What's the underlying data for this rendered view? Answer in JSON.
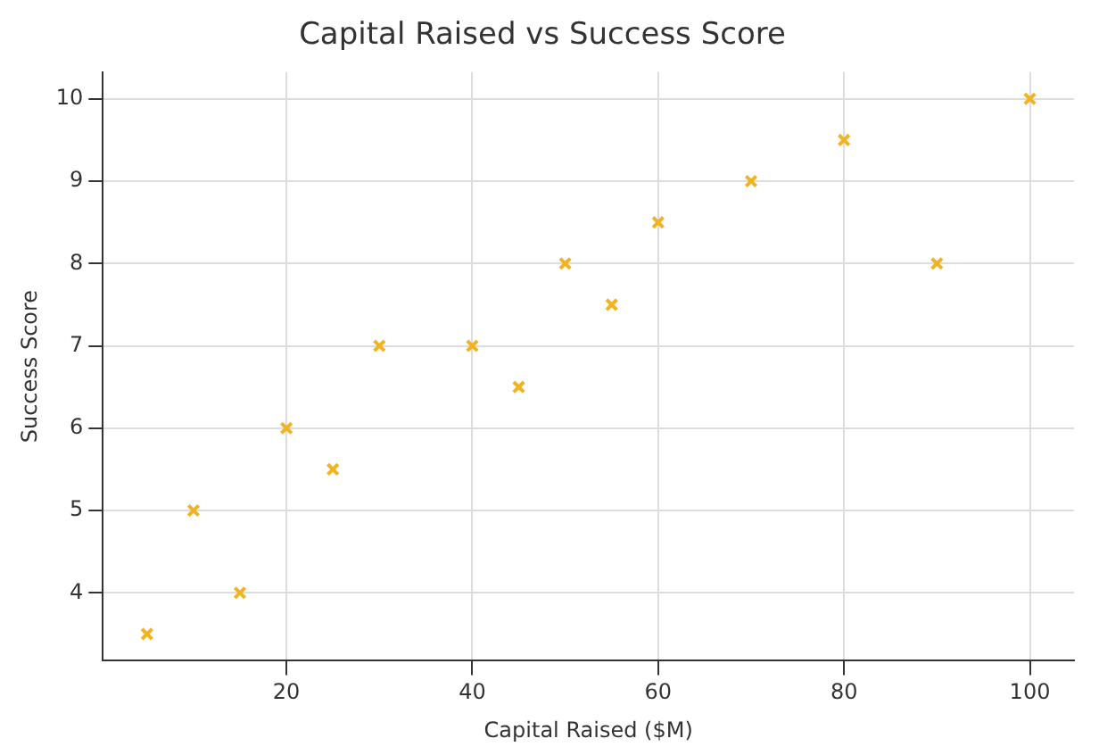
{
  "chart_data": {
    "type": "scatter",
    "title": "Capital Raised vs Success Score",
    "xlabel": "Capital Raised ($M)",
    "ylabel": "Success Score",
    "x": [
      5,
      10,
      15,
      20,
      25,
      30,
      40,
      45,
      50,
      55,
      60,
      70,
      80,
      90,
      100
    ],
    "values": [
      3.5,
      5,
      4,
      6,
      5.5,
      7,
      7,
      6.5,
      8,
      7.5,
      8.5,
      9,
      9.5,
      8,
      10
    ],
    "color": "#f0b323",
    "marker": "cross",
    "grid": true,
    "xlim": [
      0.25,
      104.75
    ],
    "xticks": [
      20,
      40,
      60,
      80,
      100
    ],
    "ylim": [
      3.175,
      10.325
    ],
    "yticks": [
      4,
      5,
      6,
      7,
      8,
      9,
      10
    ]
  }
}
